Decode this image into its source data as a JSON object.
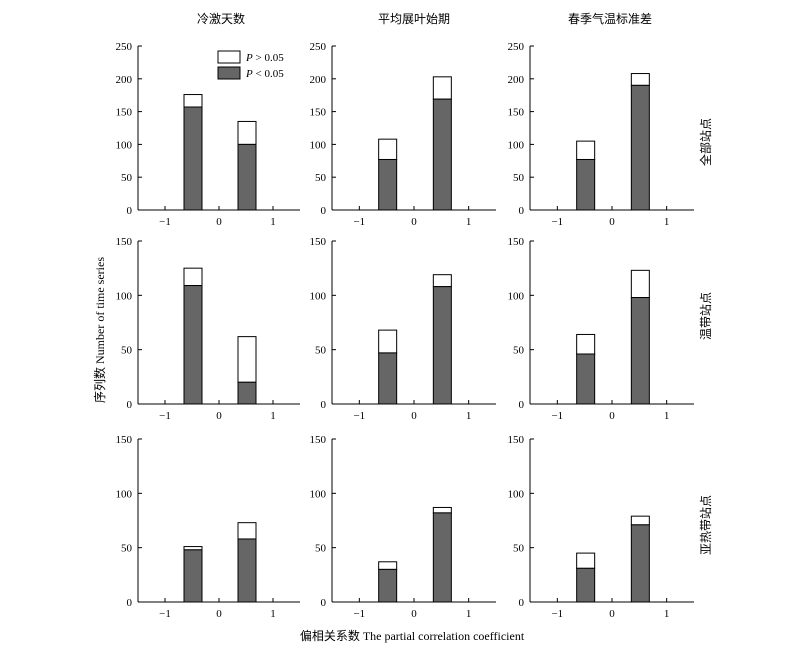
{
  "figure": {
    "ylabel": "序列数 Number of time series",
    "xlabel": "偏相关系数 The partial correlation coefficient",
    "columns": [
      "冷激天数",
      "平均展叶始期",
      "春季气温标准差"
    ],
    "rows": [
      "全部站点",
      "温带站点",
      "亚热带站点"
    ]
  },
  "legend": {
    "items": [
      {
        "prefix": "P",
        "suffix": " > 0.05",
        "color": "#ffffff"
      },
      {
        "prefix": "P",
        "suffix": " < 0.05",
        "color": "#666666"
      }
    ]
  },
  "chart_data": {
    "type": "bar",
    "stacked": true,
    "x_ticks": [
      "−1",
      "0",
      "1"
    ],
    "xlim": [
      -1.5,
      1.5
    ],
    "grid": false,
    "legend_position": "top-right of first panel",
    "series_names": [
      "P < 0.05",
      "P > 0.05"
    ],
    "panels": [
      {
        "row": 0,
        "col": 0,
        "ylim": [
          0,
          250
        ],
        "yticks": [
          "0",
          "50",
          "100",
          "150",
          "200",
          "250"
        ],
        "bars": [
          {
            "x": -0.5,
            "sig": 157,
            "total": 176
          },
          {
            "x": 0.5,
            "sig": 100,
            "total": 135
          }
        ]
      },
      {
        "row": 0,
        "col": 1,
        "ylim": [
          0,
          250
        ],
        "yticks": [
          "0",
          "50",
          "100",
          "150",
          "200",
          "250"
        ],
        "bars": [
          {
            "x": -0.5,
            "sig": 77,
            "total": 108
          },
          {
            "x": 0.5,
            "sig": 169,
            "total": 203
          }
        ]
      },
      {
        "row": 0,
        "col": 2,
        "ylim": [
          0,
          250
        ],
        "yticks": [
          "0",
          "50",
          "100",
          "150",
          "200",
          "250"
        ],
        "bars": [
          {
            "x": -0.5,
            "sig": 77,
            "total": 105
          },
          {
            "x": 0.5,
            "sig": 190,
            "total": 208
          }
        ]
      },
      {
        "row": 1,
        "col": 0,
        "ylim": [
          0,
          150
        ],
        "yticks": [
          "0",
          "50",
          "100",
          "150"
        ],
        "bars": [
          {
            "x": -0.5,
            "sig": 109,
            "total": 125
          },
          {
            "x": 0.5,
            "sig": 20,
            "total": 62
          }
        ]
      },
      {
        "row": 1,
        "col": 1,
        "ylim": [
          0,
          150
        ],
        "yticks": [
          "0",
          "50",
          "100",
          "150"
        ],
        "bars": [
          {
            "x": -0.5,
            "sig": 47,
            "total": 68
          },
          {
            "x": 0.5,
            "sig": 108,
            "total": 119
          }
        ]
      },
      {
        "row": 1,
        "col": 2,
        "ylim": [
          0,
          150
        ],
        "yticks": [
          "0",
          "50",
          "100",
          "150"
        ],
        "bars": [
          {
            "x": -0.5,
            "sig": 46,
            "total": 64
          },
          {
            "x": 0.5,
            "sig": 98,
            "total": 123
          }
        ]
      },
      {
        "row": 2,
        "col": 0,
        "ylim": [
          0,
          150
        ],
        "yticks": [
          "0",
          "50",
          "100",
          "150"
        ],
        "bars": [
          {
            "x": -0.5,
            "sig": 48,
            "total": 51
          },
          {
            "x": 0.5,
            "sig": 58,
            "total": 73
          }
        ]
      },
      {
        "row": 2,
        "col": 1,
        "ylim": [
          0,
          150
        ],
        "yticks": [
          "0",
          "50",
          "100",
          "150"
        ],
        "bars": [
          {
            "x": -0.5,
            "sig": 30,
            "total": 37
          },
          {
            "x": 0.5,
            "sig": 82,
            "total": 87
          }
        ]
      },
      {
        "row": 2,
        "col": 2,
        "ylim": [
          0,
          150
        ],
        "yticks": [
          "0",
          "50",
          "100",
          "150"
        ],
        "bars": [
          {
            "x": -0.5,
            "sig": 31,
            "total": 45
          },
          {
            "x": 0.5,
            "sig": 71,
            "total": 79
          }
        ]
      }
    ]
  }
}
